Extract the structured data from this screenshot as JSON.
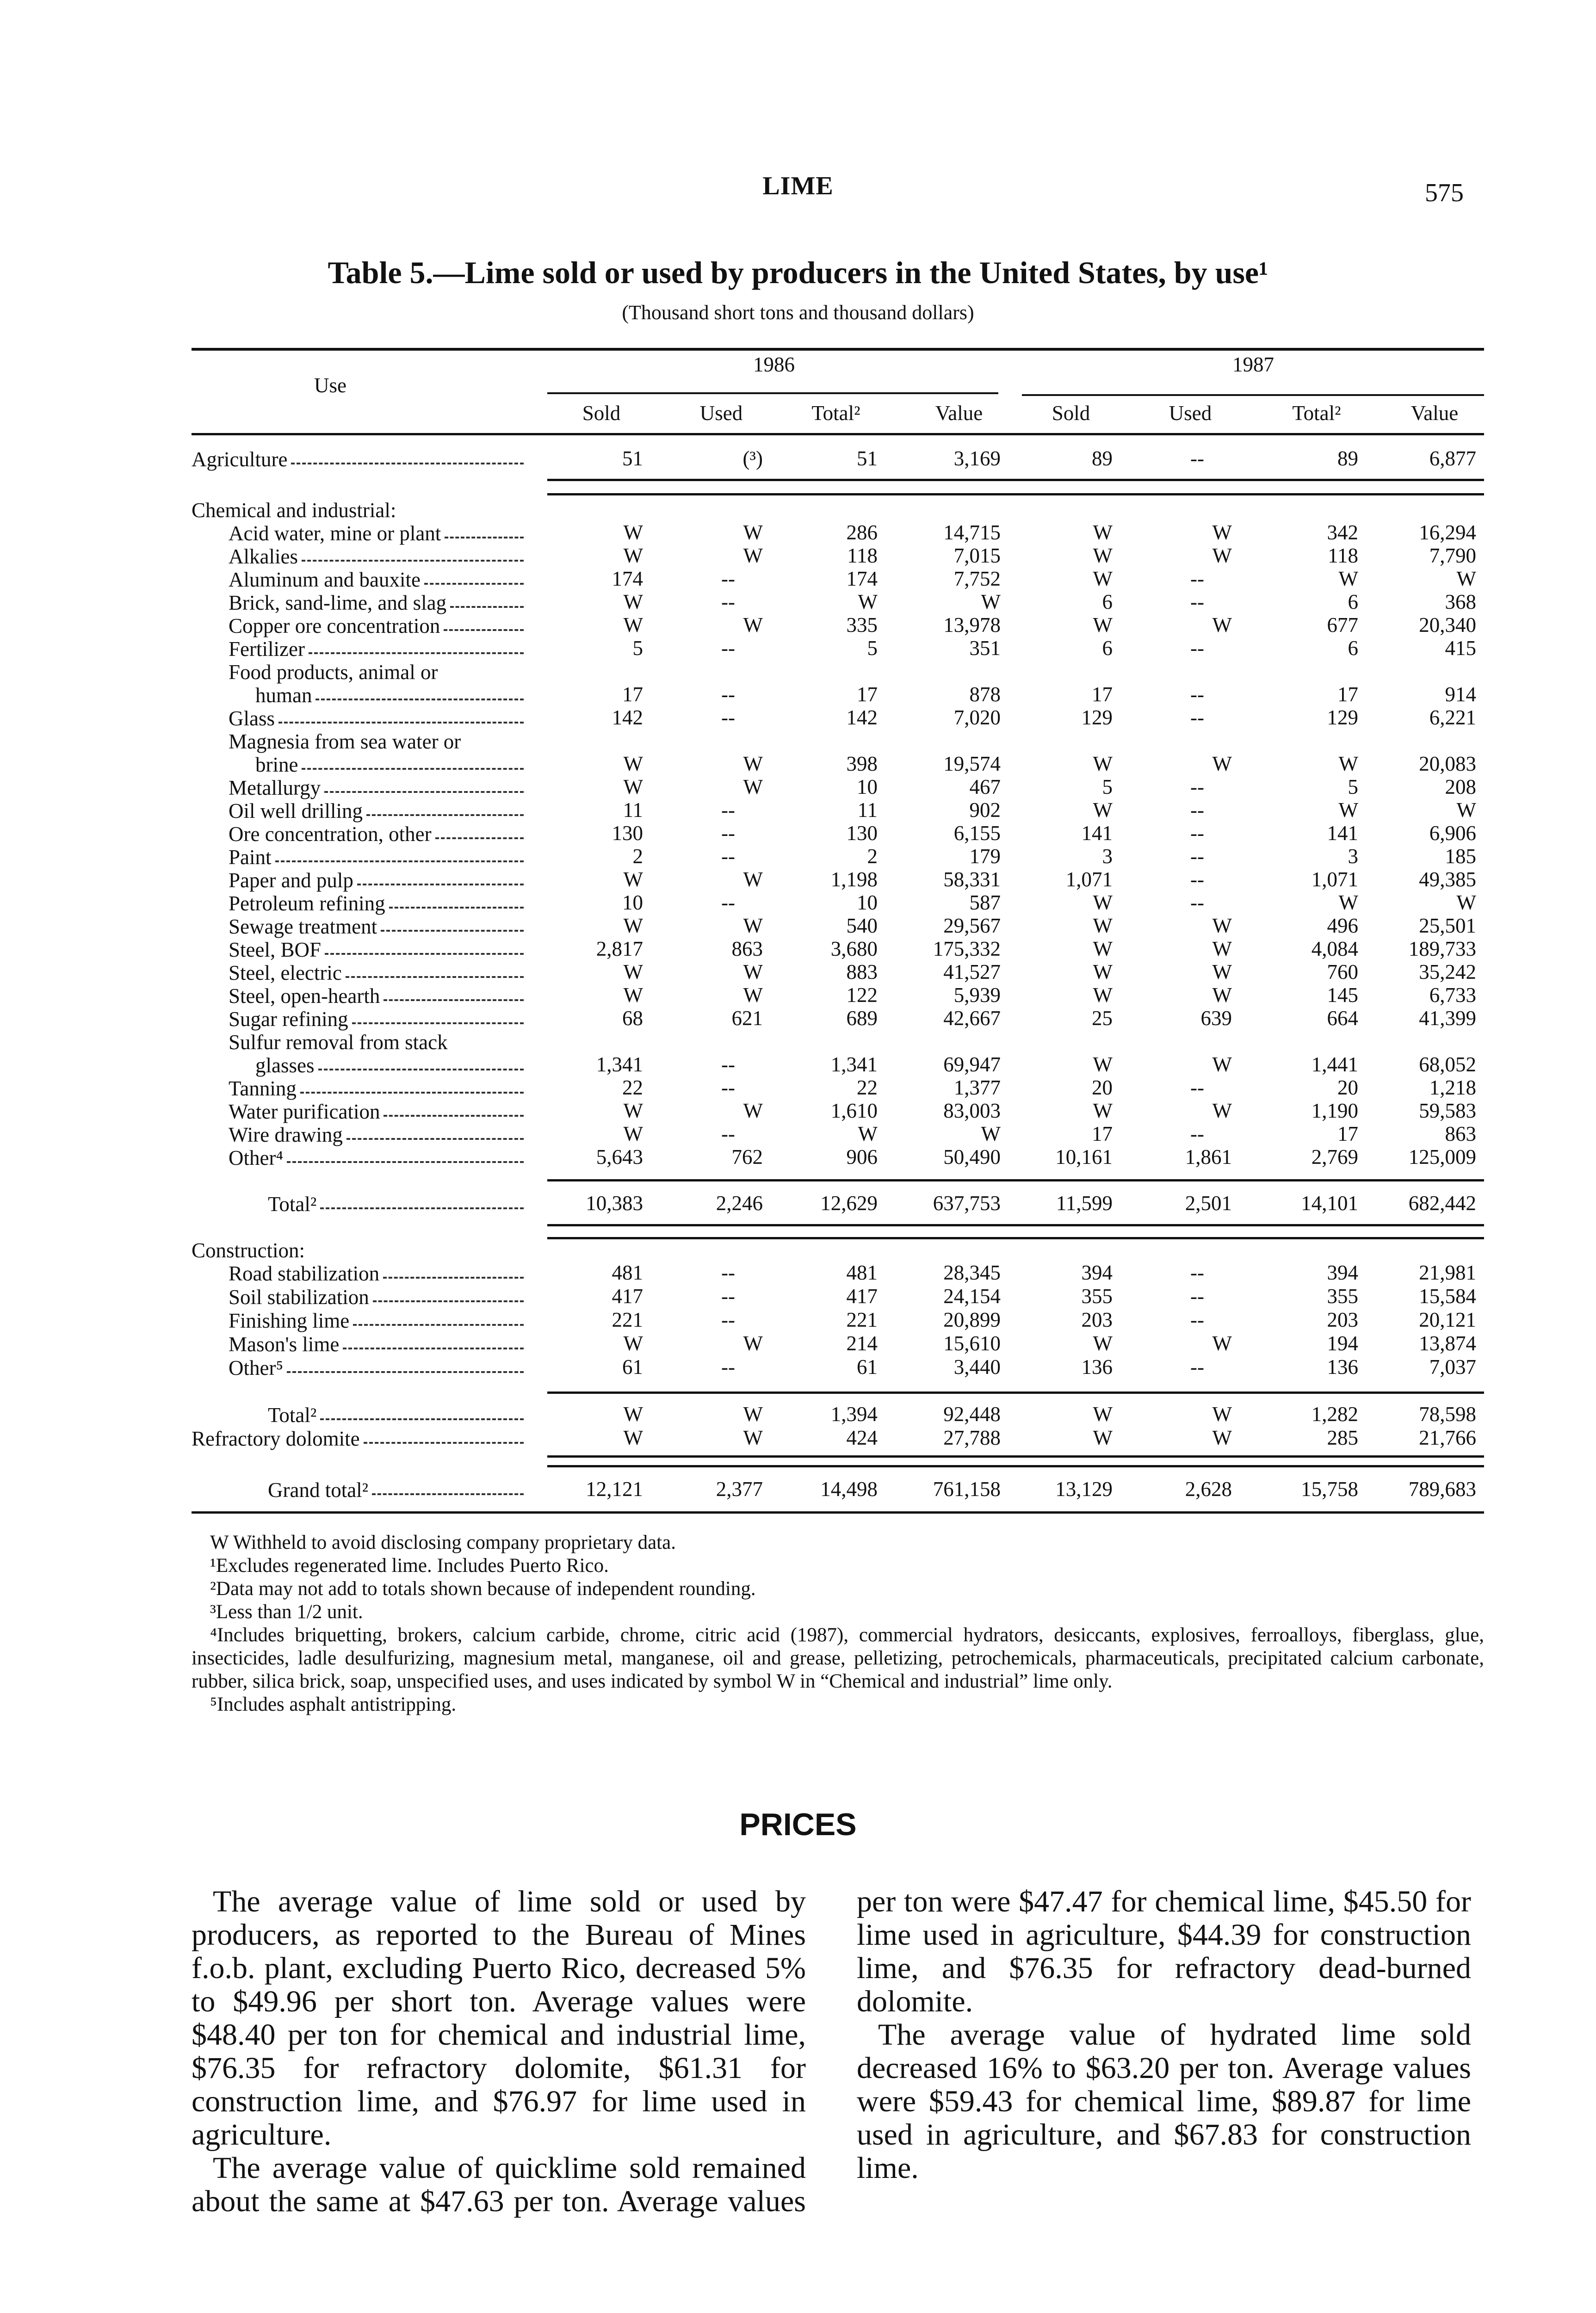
{
  "running_head": "LIME",
  "page_number": "575",
  "table": {
    "title": "Table 5.—Lime sold or used by producers in the United States, by use¹",
    "subtitle": "(Thousand short tons and thousand dollars)",
    "use_header": "Use",
    "years": [
      "1986",
      "1987"
    ],
    "columns": [
      "Sold",
      "Used",
      "Total²",
      "Value",
      "Sold",
      "Used",
      "Total²",
      "Value"
    ],
    "agriculture": {
      "label": "Agriculture",
      "values": [
        "51",
        "(³)",
        "51",
        "3,169",
        "89",
        "--",
        "89",
        "6,877"
      ]
    },
    "chemical": {
      "heading": "Chemical and industrial:",
      "rows": [
        {
          "label": "Acid water, mine or plant",
          "values": [
            "W",
            "W",
            "286",
            "14,715",
            "W",
            "W",
            "342",
            "16,294"
          ]
        },
        {
          "label": "Alkalies",
          "values": [
            "W",
            "W",
            "118",
            "7,015",
            "W",
            "W",
            "118",
            "7,790"
          ]
        },
        {
          "label": "Aluminum and bauxite",
          "values": [
            "174",
            "--",
            "174",
            "7,752",
            "W",
            "--",
            "W",
            "W"
          ]
        },
        {
          "label": "Brick, sand-lime, and slag",
          "values": [
            "W",
            "--",
            "W",
            "W",
            "6",
            "--",
            "6",
            "368"
          ]
        },
        {
          "label": "Copper ore concentration",
          "values": [
            "W",
            "W",
            "335",
            "13,978",
            "W",
            "W",
            "677",
            "20,340"
          ]
        },
        {
          "label": "Fertilizer",
          "values": [
            "5",
            "--",
            "5",
            "351",
            "6",
            "--",
            "6",
            "415"
          ]
        },
        {
          "label": "Food products, animal or",
          "continuation": "human",
          "values": [
            "17",
            "--",
            "17",
            "878",
            "17",
            "--",
            "17",
            "914"
          ]
        },
        {
          "label": "Glass",
          "values": [
            "142",
            "--",
            "142",
            "7,020",
            "129",
            "--",
            "129",
            "6,221"
          ]
        },
        {
          "label": "Magnesia from sea water or",
          "continuation": "brine",
          "values": [
            "W",
            "W",
            "398",
            "19,574",
            "W",
            "W",
            "W",
            "20,083"
          ]
        },
        {
          "label": "Metallurgy",
          "values": [
            "W",
            "W",
            "10",
            "467",
            "5",
            "--",
            "5",
            "208"
          ]
        },
        {
          "label": "Oil well drilling",
          "values": [
            "11",
            "--",
            "11",
            "902",
            "W",
            "--",
            "W",
            "W"
          ]
        },
        {
          "label": "Ore concentration, other",
          "values": [
            "130",
            "--",
            "130",
            "6,155",
            "141",
            "--",
            "141",
            "6,906"
          ]
        },
        {
          "label": "Paint",
          "values": [
            "2",
            "--",
            "2",
            "179",
            "3",
            "--",
            "3",
            "185"
          ]
        },
        {
          "label": "Paper and pulp",
          "values": [
            "W",
            "W",
            "1,198",
            "58,331",
            "1,071",
            "--",
            "1,071",
            "49,385"
          ]
        },
        {
          "label": "Petroleum refining",
          "values": [
            "10",
            "--",
            "10",
            "587",
            "W",
            "--",
            "W",
            "W"
          ]
        },
        {
          "label": "Sewage treatment",
          "values": [
            "W",
            "W",
            "540",
            "29,567",
            "W",
            "W",
            "496",
            "25,501"
          ]
        },
        {
          "label": "Steel, BOF",
          "values": [
            "2,817",
            "863",
            "3,680",
            "175,332",
            "W",
            "W",
            "4,084",
            "189,733"
          ]
        },
        {
          "label": "Steel, electric",
          "values": [
            "W",
            "W",
            "883",
            "41,527",
            "W",
            "W",
            "760",
            "35,242"
          ]
        },
        {
          "label": "Steel, open-hearth",
          "values": [
            "W",
            "W",
            "122",
            "5,939",
            "W",
            "W",
            "145",
            "6,733"
          ]
        },
        {
          "label": "Sugar refining",
          "values": [
            "68",
            "621",
            "689",
            "42,667",
            "25",
            "639",
            "664",
            "41,399"
          ]
        },
        {
          "label": "Sulfur removal from stack",
          "continuation": "glasses",
          "values": [
            "1,341",
            "--",
            "1,341",
            "69,947",
            "W",
            "W",
            "1,441",
            "68,052"
          ]
        },
        {
          "label": "Tanning",
          "values": [
            "22",
            "--",
            "22",
            "1,377",
            "20",
            "--",
            "20",
            "1,218"
          ]
        },
        {
          "label": "Water purification",
          "values": [
            "W",
            "W",
            "1,610",
            "83,003",
            "W",
            "W",
            "1,190",
            "59,583"
          ]
        },
        {
          "label": "Wire drawing",
          "values": [
            "W",
            "--",
            "W",
            "W",
            "17",
            "--",
            "17",
            "863"
          ]
        },
        {
          "label": "Other⁴",
          "values": [
            "5,643",
            "762",
            "906",
            "50,490",
            "10,161",
            "1,861",
            "2,769",
            "125,009"
          ]
        }
      ],
      "total": {
        "label": "Total²",
        "values": [
          "10,383",
          "2,246",
          "12,629",
          "637,753",
          "11,599",
          "2,501",
          "14,101",
          "682,442"
        ]
      }
    },
    "construction": {
      "heading": "Construction:",
      "rows": [
        {
          "label": "Road stabilization",
          "values": [
            "481",
            "--",
            "481",
            "28,345",
            "394",
            "--",
            "394",
            "21,981"
          ]
        },
        {
          "label": "Soil stabilization",
          "values": [
            "417",
            "--",
            "417",
            "24,154",
            "355",
            "--",
            "355",
            "15,584"
          ]
        },
        {
          "label": "Finishing lime",
          "values": [
            "221",
            "--",
            "221",
            "20,899",
            "203",
            "--",
            "203",
            "20,121"
          ]
        },
        {
          "label": "Mason's lime",
          "values": [
            "W",
            "W",
            "214",
            "15,610",
            "W",
            "W",
            "194",
            "13,874"
          ]
        },
        {
          "label": "Other⁵",
          "values": [
            "61",
            "--",
            "61",
            "3,440",
            "136",
            "--",
            "136",
            "7,037"
          ]
        }
      ],
      "total": {
        "label": "Total²",
        "values": [
          "W",
          "W",
          "1,394",
          "92,448",
          "W",
          "W",
          "1,282",
          "78,598"
        ]
      }
    },
    "refractory": {
      "label": "Refractory dolomite",
      "values": [
        "W",
        "W",
        "424",
        "27,788",
        "W",
        "W",
        "285",
        "21,766"
      ]
    },
    "grand_total": {
      "label": "Grand total²",
      "values": [
        "12,121",
        "2,377",
        "14,498",
        "761,158",
        "13,129",
        "2,628",
        "15,758",
        "789,683"
      ]
    }
  },
  "footnotes": [
    "W Withheld to avoid disclosing company proprietary data.",
    "¹Excludes regenerated lime. Includes Puerto Rico.",
    "²Data may not add to totals shown because of independent rounding.",
    "³Less than 1/2 unit.",
    "⁴Includes briquetting, brokers, calcium carbide, chrome, citric acid (1987), commercial hydrators, desiccants, explosives, ferroalloys, fiberglass, glue, insecticides, ladle desulfurizing, magnesium metal, manganese, oil and grease, pelletizing, petrochemicals, pharmaceuticals, precipitated calcium carbonate, rubber, silica brick, soap, unspecified uses, and uses indicated by symbol W in “Chemical and industrial” lime only.",
    "⁵Includes asphalt antistripping."
  ],
  "prices": {
    "heading": "PRICES",
    "paragraphs": [
      "The average value of lime sold or used by producers, as reported to the Bureau of Mines f.o.b. plant, excluding Puerto Rico, decreased 5% to $49.96 per short ton. Average values were $48.40 per ton for chemical and industrial lime, $76.35 for refractory dolomite, $61.31 for construction lime, and $76.97 for lime used in agriculture.",
      "The average value of quicklime sold remained about the same at $47.63 per ton. Average values per ton were $47.47 for chemical lime, $45.50 for lime used in agriculture, $44.39 for construction lime, and $76.35 for refractory dead-burned dolomite.",
      "The average value of hydrated lime sold decreased 16% to $63.20 per ton. Average values were $59.43 for chemical lime, $89.87 for lime used in agriculture, and $67.83 for construction lime."
    ]
  }
}
